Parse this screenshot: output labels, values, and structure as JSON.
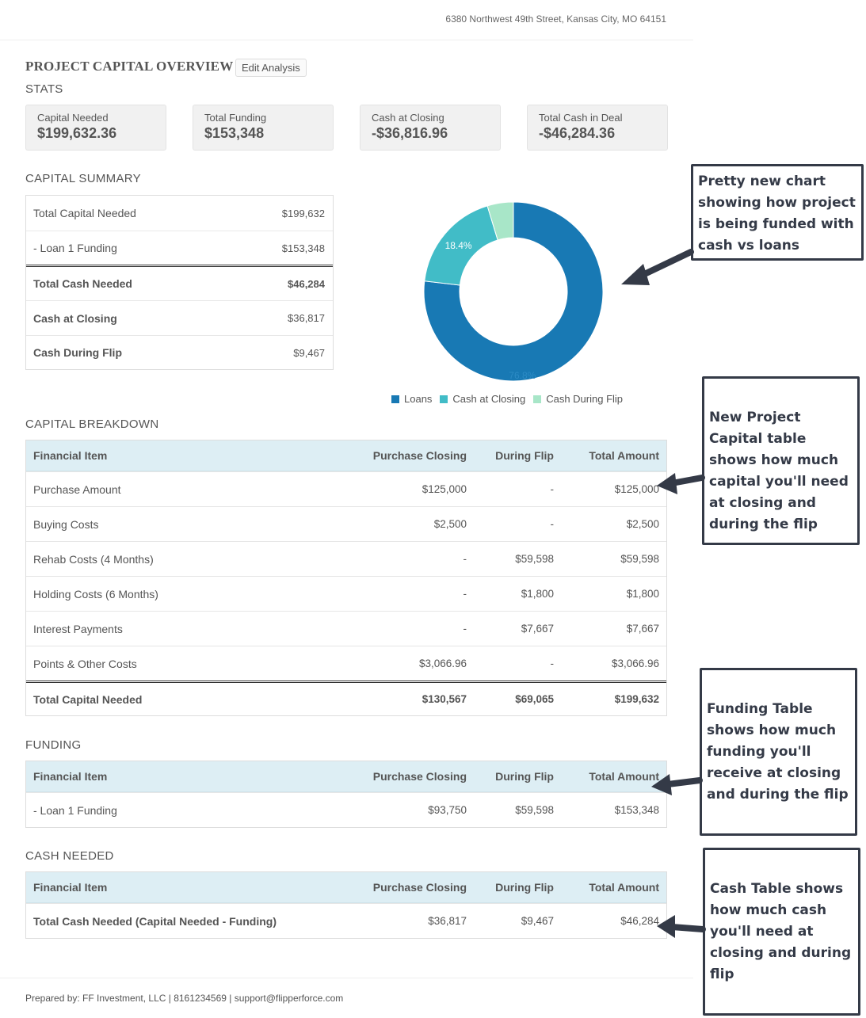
{
  "header": {
    "address": "6380 Northwest 49th Street, Kansas City, MO 64151"
  },
  "overview": {
    "title": "PROJECT CAPITAL OVERVIEW",
    "edit_label": "Edit Analysis"
  },
  "stats": {
    "title": "STATS",
    "items": [
      {
        "label": "Capital Needed",
        "value": "$199,632.36"
      },
      {
        "label": "Total Funding",
        "value": "$153,348"
      },
      {
        "label": "Cash at Closing",
        "value": "-$36,816.96"
      },
      {
        "label": "Total Cash in Deal",
        "value": "-$46,284.36"
      }
    ]
  },
  "capital_summary": {
    "title": "CAPITAL SUMMARY",
    "rows": [
      {
        "label": "Total Capital Needed",
        "value": "$199,632"
      },
      {
        "label": "- Loan 1 Funding",
        "value": "$153,348"
      },
      {
        "label": "Total Cash Needed",
        "value": "$46,284"
      },
      {
        "label": "Cash at Closing",
        "value": "$36,817"
      },
      {
        "label": "Cash During Flip",
        "value": "$9,467"
      }
    ]
  },
  "chart_data": {
    "type": "pie",
    "categories": [
      "Loans",
      "Cash at Closing",
      "Cash During Flip"
    ],
    "values": [
      76.8,
      18.4,
      4.7
    ],
    "data_labels": [
      "76.8%",
      "18.4%",
      ""
    ],
    "colors": [
      "#1879b4",
      "#41bcc7",
      "#a8e6c8"
    ],
    "legend": "bottom"
  },
  "capital_breakdown": {
    "title": "CAPITAL BREAKDOWN",
    "headers": [
      "Financial Item",
      "Purchase Closing",
      "During Flip",
      "Total Amount"
    ],
    "rows": [
      [
        "Purchase Amount",
        "$125,000",
        "-",
        "$125,000"
      ],
      [
        "Buying Costs",
        "$2,500",
        "-",
        "$2,500"
      ],
      [
        "Rehab Costs (4 Months)",
        "-",
        "$59,598",
        "$59,598"
      ],
      [
        "Holding Costs (6 Months)",
        "-",
        "$1,800",
        "$1,800"
      ],
      [
        "Interest Payments",
        "-",
        "$7,667",
        "$7,667"
      ],
      [
        "Points & Other Costs",
        "$3,066.96",
        "-",
        "$3,066.96"
      ],
      [
        "Total Capital Needed",
        "$130,567",
        "$69,065",
        "$199,632"
      ]
    ]
  },
  "funding": {
    "title": "FUNDING",
    "headers": [
      "Financial Item",
      "Purchase Closing",
      "During Flip",
      "Total Amount"
    ],
    "rows": [
      [
        "- Loan 1 Funding",
        "$93,750",
        "$59,598",
        "$153,348"
      ]
    ]
  },
  "cash_needed": {
    "title": "CASH NEEDED",
    "headers": [
      "Financial Item",
      "Purchase Closing",
      "During Flip",
      "Total Amount"
    ],
    "rows": [
      [
        "Total Cash Needed (Capital Needed - Funding)",
        "$36,817",
        "$9,467",
        "$46,284"
      ]
    ]
  },
  "footer": {
    "text": "Prepared by: FF Investment, LLC | 8161234569 | support@flipperforce.com"
  },
  "callouts": [
    "Pretty new chart showing  how project is being funded with cash vs loans",
    "New Project Capital table shows how much capital you'll need at closing and during the flip",
    "Funding Table shows how much funding you'll receive at closing and during the flip",
    "Cash Table shows how much cash you'll need at closing and during flip"
  ]
}
